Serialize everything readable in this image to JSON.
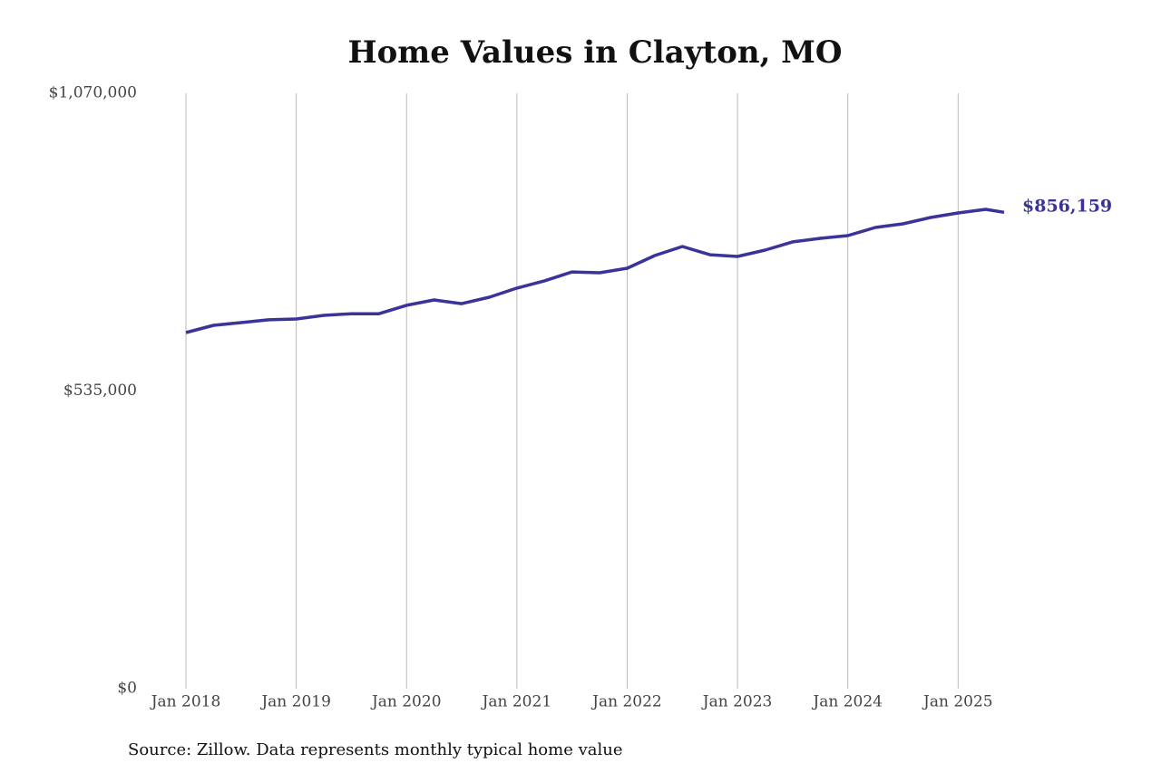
{
  "chart_data": {
    "type": "line",
    "title": "Home Values in Clayton, MO",
    "source": "Source: Zillow. Data represents monthly typical home value",
    "x": [
      "2018-01",
      "2018-04",
      "2018-07",
      "2018-10",
      "2019-01",
      "2019-04",
      "2019-07",
      "2019-10",
      "2020-01",
      "2020-04",
      "2020-07",
      "2020-10",
      "2021-01",
      "2021-04",
      "2021-07",
      "2021-10",
      "2022-01",
      "2022-04",
      "2022-07",
      "2022-10",
      "2023-01",
      "2023-04",
      "2023-07",
      "2023-10",
      "2024-01",
      "2024-04",
      "2024-07",
      "2024-10",
      "2025-01",
      "2025-04",
      "2025-06"
    ],
    "series": [
      {
        "name": "Clayton, MO",
        "color": "#3a3399",
        "values": [
          640000,
          653000,
          658000,
          663000,
          664500,
          671000,
          674000,
          674000,
          689000,
          698700,
          692000,
          703500,
          720000,
          733000,
          749000,
          747500,
          755700,
          778500,
          794800,
          780000,
          776800,
          788200,
          803000,
          809400,
          814300,
          829000,
          835500,
          846900,
          855000,
          861500,
          856159
        ],
        "value_labels": [
          null,
          null,
          null,
          null,
          null,
          null,
          null,
          null,
          null,
          null,
          null,
          null,
          null,
          null,
          null,
          null,
          null,
          null,
          null,
          null,
          null,
          null,
          null,
          null,
          null,
          null,
          null,
          null,
          null,
          null,
          "$856,159"
        ]
      }
    ],
    "xlim": [
      "2018-01",
      "2025-06"
    ],
    "xticks": [
      {
        "value": "2018-01",
        "label": "Jan 2018"
      },
      {
        "value": "2019-01",
        "label": "Jan 2019"
      },
      {
        "value": "2020-01",
        "label": "Jan 2020"
      },
      {
        "value": "2021-01",
        "label": "Jan 2021"
      },
      {
        "value": "2022-01",
        "label": "Jan 2022"
      },
      {
        "value": "2023-01",
        "label": "Jan 2023"
      },
      {
        "value": "2024-01",
        "label": "Jan 2024"
      },
      {
        "value": "2025-01",
        "label": "Jan 2025"
      }
    ],
    "ylim": [
      0,
      1070000
    ],
    "yticks": [
      {
        "value": 0,
        "label": "$0"
      },
      {
        "value": 535000,
        "label": "$535,000"
      },
      {
        "value": 1070000,
        "label": "$1,070,000"
      }
    ],
    "grid": "x"
  }
}
